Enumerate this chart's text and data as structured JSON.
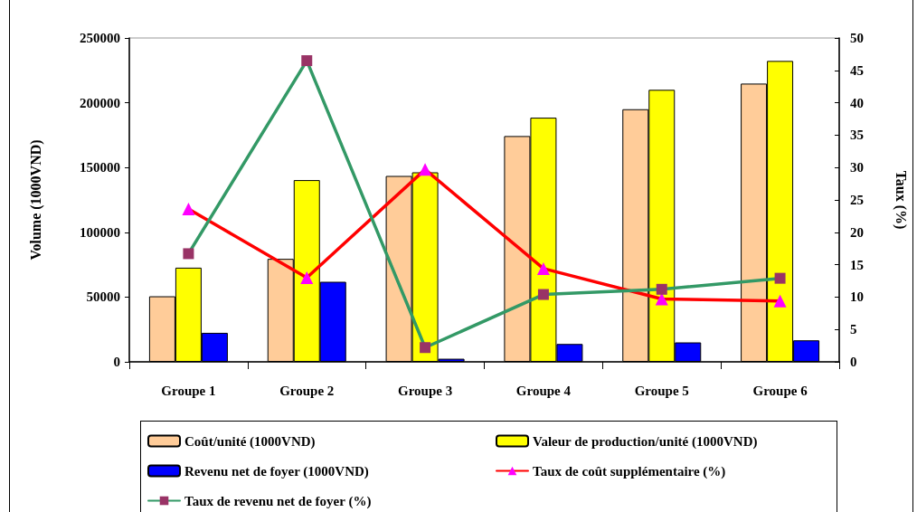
{
  "chart_data": {
    "type": "bar",
    "categories": [
      "Groupe 1",
      "Groupe 2",
      "Groupe 3",
      "Groupe 4",
      "Groupe 5",
      "Groupe 6"
    ],
    "ylabel": "Volume (1000VND)",
    "y2label": "Taux (%)",
    "ylim": [
      0,
      250000
    ],
    "yticks": [
      0,
      50000,
      100000,
      150000,
      200000,
      250000
    ],
    "y2lim": [
      0,
      50
    ],
    "y2ticks": [
      0,
      5,
      10,
      15,
      20,
      25,
      30,
      35,
      40,
      45,
      50
    ],
    "grid": false,
    "legend": "bottom",
    "series": [
      {
        "name": "Coût/unité (1000VND)",
        "color": "#ffcc99",
        "values": [
          50600,
          79500,
          143500,
          174300,
          195000,
          214800
        ]
      },
      {
        "name": "Valeur de production/unité (1000VND)",
        "color": "#ffff00",
        "values": [
          72700,
          140300,
          146300,
          188500,
          210000,
          232300
        ]
      },
      {
        "name": "Revenu net de foyer (1000VND)",
        "color": "#0000ff",
        "values": [
          22400,
          61800,
          2400,
          13800,
          15000,
          16600
        ]
      },
      {
        "name": "Taux de coût supplémentaire (%)",
        "type": "line",
        "axis": "y2",
        "color": "#ff0000",
        "marker": "triangle",
        "line_style": "solid",
        "colors": [
          "#ff00ff",
          "#ff00ff",
          "#ff00ff",
          "#ff00ff",
          "#ff00ff",
          "#ff00ff"
        ],
        "values": [
          23.6,
          13.0,
          29.7,
          14.4,
          9.7,
          9.4
        ]
      },
      {
        "name": "Taux de revenu net de foyer (%)",
        "type": "line",
        "axis": "y2",
        "color": "#339966",
        "marker": "square",
        "line_style": "solid",
        "colors": [
          "#993366",
          "#993366",
          "#993366",
          "#993366",
          "#993366",
          "#993366"
        ],
        "values": [
          16.7,
          46.5,
          2.2,
          10.4,
          11.2,
          12.9
        ]
      }
    ]
  }
}
